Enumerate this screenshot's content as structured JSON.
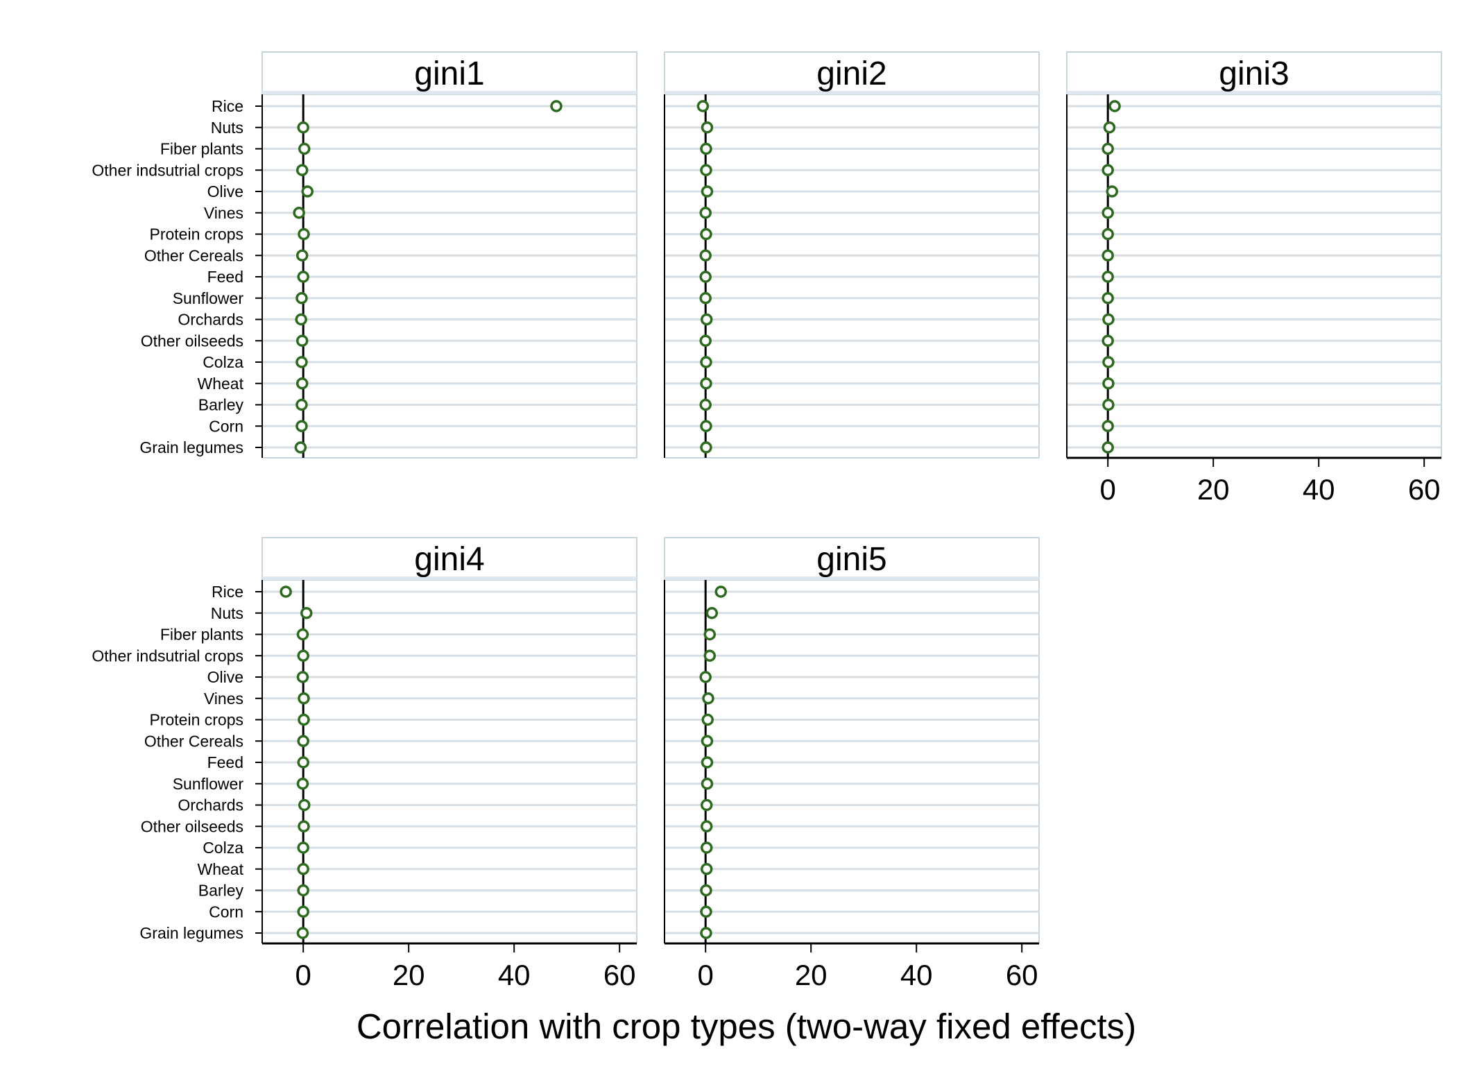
{
  "chart_data": {
    "type": "scatter",
    "xlabel": "Correlation with crop types (two-way fixed effects)",
    "xlim": [
      -7,
      63
    ],
    "xticks": [
      0,
      20,
      40,
      60
    ],
    "reference_line_x": 0,
    "grid": true,
    "categories": [
      "Rice",
      "Nuts",
      "Fiber plants",
      "Other indsutrial crops",
      "Olive",
      "Vines",
      "Protein crops",
      "Other Cereals",
      "Feed",
      "Sunflower",
      "Orchards",
      "Other oilseeds",
      "Colza",
      "Wheat",
      "Barley",
      "Corn",
      "Grain legumes"
    ],
    "panels": [
      {
        "title": "gini1",
        "values": [
          48,
          0,
          0.2,
          -0.2,
          0.8,
          -0.8,
          0.1,
          -0.2,
          0,
          -0.3,
          -0.4,
          -0.2,
          -0.3,
          -0.2,
          -0.3,
          -0.3,
          -0.5
        ]
      },
      {
        "title": "gini2",
        "values": [
          -0.5,
          0.3,
          0.1,
          0.1,
          0.3,
          0,
          0.1,
          0,
          0,
          0,
          0.2,
          0,
          0.1,
          0.1,
          0,
          0.1,
          0.1
        ]
      },
      {
        "title": "gini3",
        "values": [
          1.3,
          0.3,
          0,
          0,
          0.8,
          0,
          0,
          0,
          0,
          0,
          0.1,
          0,
          0.1,
          0.1,
          0.1,
          0,
          0
        ]
      },
      {
        "title": "gini4",
        "values": [
          -3.3,
          0.6,
          -0.1,
          0,
          -0.1,
          0.1,
          0.1,
          0,
          0,
          -0.1,
          0.2,
          0.1,
          0,
          0,
          0,
          0,
          -0.1
        ]
      },
      {
        "title": "gini5",
        "values": [
          2.9,
          1.2,
          0.8,
          0.8,
          0,
          0.5,
          0.4,
          0.3,
          0.3,
          0.3,
          0.2,
          0.2,
          0.2,
          0.2,
          0.1,
          0.1,
          0.1
        ]
      }
    ],
    "colors": {
      "marker_stroke": "#2d6a1f",
      "gridline": "#d7dee3",
      "panel_border": "#c6d6dc",
      "title_underline": "#dfe8f0"
    }
  }
}
